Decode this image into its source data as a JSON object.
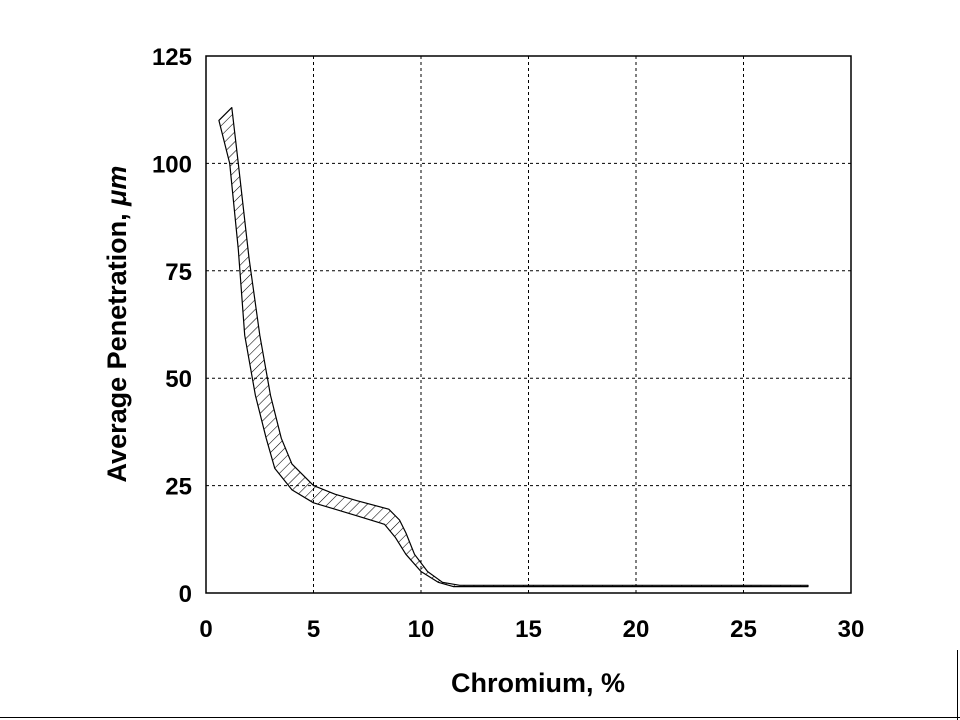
{
  "chart_data": {
    "type": "area",
    "title": "",
    "xlabel": "Chromium, %",
    "ylabel_prefix": "Average Penetration, ",
    "ylabel_unit": "μm",
    "xlim": [
      0,
      30
    ],
    "ylim": [
      0,
      125
    ],
    "x_ticks": [
      0,
      5,
      10,
      15,
      20,
      25,
      30
    ],
    "y_ticks": [
      0,
      25,
      50,
      75,
      100,
      125
    ],
    "grid": true,
    "legend": "none",
    "series": [
      {
        "fill": "diagonal-hatch",
        "upper": [
          {
            "x": 1.2,
            "y": 113
          },
          {
            "x": 1.5,
            "y": 100
          },
          {
            "x": 2.0,
            "y": 78
          },
          {
            "x": 2.5,
            "y": 60
          },
          {
            "x": 3.0,
            "y": 46
          },
          {
            "x": 3.5,
            "y": 36
          },
          {
            "x": 4.0,
            "y": 30
          },
          {
            "x": 5.0,
            "y": 25
          },
          {
            "x": 6.0,
            "y": 23
          },
          {
            "x": 7.0,
            "y": 21.5
          },
          {
            "x": 8.5,
            "y": 19.5
          },
          {
            "x": 9.0,
            "y": 17
          },
          {
            "x": 9.3,
            "y": 14
          },
          {
            "x": 9.7,
            "y": 9
          },
          {
            "x": 10.3,
            "y": 5
          },
          {
            "x": 11.0,
            "y": 2.5
          },
          {
            "x": 11.8,
            "y": 1.8
          },
          {
            "x": 12.0,
            "y": 1.8
          },
          {
            "x": 28.0,
            "y": 1.8
          }
        ],
        "lower": [
          {
            "x": 28.0,
            "y": 1.5
          },
          {
            "x": 11.5,
            "y": 1.5
          },
          {
            "x": 10.8,
            "y": 2.5
          },
          {
            "x": 10.0,
            "y": 5
          },
          {
            "x": 9.3,
            "y": 9
          },
          {
            "x": 8.8,
            "y": 13
          },
          {
            "x": 8.3,
            "y": 16
          },
          {
            "x": 7.0,
            "y": 18
          },
          {
            "x": 6.0,
            "y": 19.5
          },
          {
            "x": 5.0,
            "y": 21
          },
          {
            "x": 4.0,
            "y": 24
          },
          {
            "x": 3.2,
            "y": 29
          },
          {
            "x": 2.8,
            "y": 36
          },
          {
            "x": 2.3,
            "y": 46
          },
          {
            "x": 1.8,
            "y": 60
          },
          {
            "x": 1.5,
            "y": 80
          },
          {
            "x": 1.1,
            "y": 100
          },
          {
            "x": 0.6,
            "y": 110
          }
        ]
      }
    ]
  }
}
